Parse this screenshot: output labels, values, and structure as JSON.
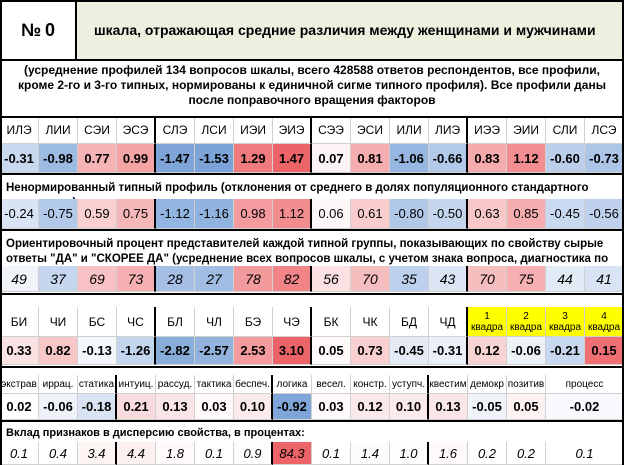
{
  "header": {
    "number_label": "№",
    "number_value": "0",
    "title": "шкала, отражающая средние различия между женщинами и мужчинами"
  },
  "note": "(усреднение профилей 134 вопросов шкалы, всего 428588 ответов респондентов, все профили, кроме 2-го и 3-го типных, нормированы к единичной сигме типного профиля). Все профили даны после поправочного вращения факторов",
  "types": [
    "ИЛЭ",
    "ЛИИ",
    "СЭИ",
    "ЭСЭ",
    "СЛЭ",
    "ЛСИ",
    "ИЭИ",
    "ЭИЭ",
    "СЭЭ",
    "ЭСИ",
    "ИЛИ",
    "ЛИЭ",
    "ИЭЭ",
    "ЭИИ",
    "СЛИ",
    "ЛСЭ"
  ],
  "typed_profile": [
    "-0.31",
    "-0.98",
    "0.77",
    "0.99",
    "-1.47",
    "-1.53",
    "1.29",
    "1.47",
    "0.07",
    "0.81",
    "-1.06",
    "-0.66",
    "0.83",
    "1.12",
    "-0.60",
    "-0.73"
  ],
  "typed_profile_colors": [
    "#c8d8ef",
    "#9bbbe3",
    "#f6b3b5",
    "#f4a3a5",
    "#7fa5d8",
    "#7ca3d7",
    "#f07b7e",
    "#ec6467",
    "#fcf3f4",
    "#f5adaf",
    "#95b7e1",
    "#b3c9e9",
    "#f5aaac",
    "#f28e91",
    "#bbcfeb",
    "#adc6e8"
  ],
  "nonnorm_label": "Ненормированный типный профиль (отклонения от среднего  в долях популяционного стандартного отклонения):",
  "nonnorm_profile": [
    "-0.24",
    "-0.75",
    "0.59",
    "0.75",
    "-1.12",
    "-1.16",
    "0.98",
    "1.12",
    "0.06",
    "0.61",
    "-0.80",
    "-0.50",
    "0.63",
    "0.85",
    "-0.45",
    "-0.56"
  ],
  "nonnorm_colors": [
    "#d8e3f3",
    "#b3c9e9",
    "#f9cfd0",
    "#f6b7b9",
    "#93b5e1",
    "#91b3e0",
    "#f39b9e",
    "#f18c8f",
    "#fdf7f7",
    "#f9cdce",
    "#b0c7e8",
    "#c4d5ee",
    "#f8c8c9",
    "#f5adaf",
    "#c9d9f0",
    "#bfd1ec"
  ],
  "pct_label": "Ориентировочный процент представителей каждой типной группы, показывающих по свойству сырые ответы \"ДА\" и \"СКОРЕЕ ДА\" (усреднение всех вопросов шкалы, с учетом знака вопроса, диагностика по признакам)",
  "pct_values": [
    "49",
    "37",
    "69",
    "73",
    "28",
    "27",
    "78",
    "82",
    "56",
    "70",
    "35",
    "43",
    "70",
    "75",
    "44",
    "41"
  ],
  "pct_colors": [
    "#f1f5fb",
    "#c6d6ef",
    "#f8c2c4",
    "#f6b0b2",
    "#a5bfe5",
    "#a1bde4",
    "#f39a9d",
    "#f08487",
    "#fbe1e2",
    "#f7bec0",
    "#bdd0ec",
    "#dbe5f4",
    "#f7bec0",
    "#f6b0b2",
    "#e2eaf6",
    "#d8e3f3"
  ],
  "dich_labels": [
    "БИ",
    "ЧИ",
    "БС",
    "ЧС",
    "БЛ",
    "ЧЛ",
    "БЭ",
    "ЧЭ",
    "БК",
    "ЧК",
    "БД",
    "ЧД"
  ],
  "dich_values": [
    "0.33",
    "0.82",
    "-0.13",
    "-1.26",
    "-2.82",
    "-2.57",
    "2.53",
    "3.10",
    "0.05",
    "0.73",
    "-0.45",
    "-0.31"
  ],
  "dich_colors": [
    "#fbe3e4",
    "#f8c7c8",
    "#f3f6fb",
    "#c4d5ee",
    "#88add9",
    "#92b3dd",
    "#f49b9e",
    "#ec6467",
    "#fefafa",
    "#f9cfd0",
    "#e4ebf6",
    "#ebf0f8"
  ],
  "quadra_header_word": "квадра",
  "quadra_numbers": [
    "1",
    "2",
    "3",
    "4"
  ],
  "quadra_values": [
    "0.12",
    "-0.06",
    "-0.21",
    "0.15"
  ],
  "quadra_colors": [
    "#f8d3d4",
    "#edf2f9",
    "#c7d7ef",
    "#ef6f72"
  ],
  "quadra_header_color": "#ffff00",
  "traits_labels": [
    "экстрав",
    "иррац.",
    "статика",
    "интуиц.",
    "рассуд.",
    "тактика",
    "беспеч.",
    "логика",
    "весел.",
    "констр.",
    "уступч.",
    "квестим",
    "демокр",
    "позитив",
    "процесс"
  ],
  "traits_values": [
    "0.02",
    "-0.06",
    "-0.18",
    "0.21",
    "0.13",
    "0.03",
    "0.10",
    "-0.92",
    "0.03",
    "0.12",
    "0.10",
    "0.13",
    "-0.05",
    "0.05",
    "-0.02"
  ],
  "traits_colors": [
    "#ffffff",
    "#eef2f9",
    "#d8e3f3",
    "#f8dbdc",
    "#fbe6e7",
    "#fefafa",
    "#fcebeb",
    "#7ea6d9",
    "#fefafa",
    "#fbe9ea",
    "#fcebeb",
    "#fbe6e7",
    "#f0f4fa",
    "#fdf3f3",
    "#f7f9fc"
  ],
  "contrib_label": "Вклад признаков в дисперсию свойства, в процентах:",
  "contrib_values": [
    "0.1",
    "0.4",
    "3.4",
    "4.4",
    "1.8",
    "0.1",
    "0.9",
    "84.3",
    "0.1",
    "1.4",
    "1.0",
    "1.6",
    "0.2",
    "0.2",
    "0.1"
  ],
  "contrib_colors": [
    "#ffffff",
    "#ffffff",
    "#fdf4f4",
    "#fcf0f0",
    "#fefafa",
    "#ffffff",
    "#fefcfc",
    "#ec6467",
    "#ffffff",
    "#fefbfb",
    "#fefcfc",
    "#fefafa",
    "#ffffff",
    "#ffffff",
    "#ffffff"
  ]
}
